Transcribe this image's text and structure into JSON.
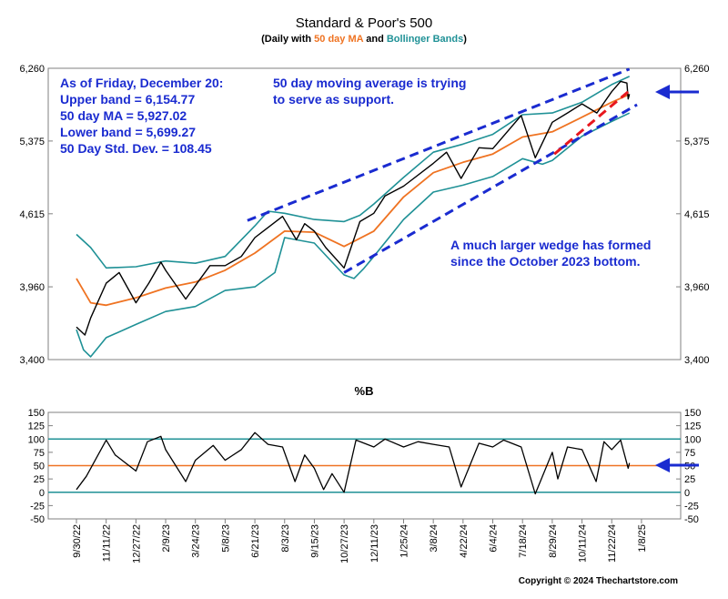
{
  "chart_data": [
    {
      "type": "line",
      "title": "Standard & Poor's 500",
      "subtitle": {
        "prefix": "(Daily with ",
        "ma": "50 day MA",
        "and": " and ",
        "bands": "Bollinger Bands",
        "suffix": ")"
      },
      "ylim": [
        3400,
        6260
      ],
      "y_ticks": [
        "3,400",
        "3,960",
        "4,615",
        "5,375",
        "6,260"
      ],
      "x_ticks": [
        "9/30/22",
        "11/11/22",
        "12/27/22",
        "2/9/23",
        "3/24/23",
        "5/8/23",
        "6/21/23",
        "8/3/23",
        "9/15/23",
        "10/27/23",
        "12/11/23",
        "1/25/24",
        "3/8/24",
        "4/22/24",
        "6/4/24",
        "7/18/24",
        "8/29/24",
        "10/11/24",
        "11/22/24",
        "1/8/25"
      ],
      "colors": {
        "price": "#000000",
        "ma": "#ef7322",
        "bands": "#1f9196",
        "annotation": "#1a2bd0",
        "support": "#e8171e"
      },
      "series": [
        {
          "name": "50 day MA",
          "points": [
            [
              "9/30/22",
              4030
            ],
            [
              "10/20/22",
              3830
            ],
            [
              "11/11/22",
              3810
            ],
            [
              "12/27/22",
              3870
            ],
            [
              "2/9/23",
              3950
            ],
            [
              "3/24/23",
              4000
            ],
            [
              "5/8/23",
              4100
            ],
            [
              "6/21/23",
              4250
            ],
            [
              "8/3/23",
              4450
            ],
            [
              "9/15/23",
              4440
            ],
            [
              "10/27/23",
              4310
            ],
            [
              "12/11/23",
              4450
            ],
            [
              "1/25/24",
              4780
            ],
            [
              "3/8/24",
              5030
            ],
            [
              "4/22/24",
              5140
            ],
            [
              "6/4/24",
              5230
            ],
            [
              "7/18/24",
              5420
            ],
            [
              "8/29/24",
              5480
            ],
            [
              "10/11/24",
              5650
            ],
            [
              "11/22/24",
              5830
            ],
            [
              "12/20/24",
              5927
            ]
          ]
        },
        {
          "name": "Upper band",
          "points": [
            [
              "9/30/22",
              4420
            ],
            [
              "10/20/22",
              4300
            ],
            [
              "11/11/22",
              4120
            ],
            [
              "12/27/22",
              4130
            ],
            [
              "2/9/23",
              4180
            ],
            [
              "3/24/23",
              4160
            ],
            [
              "5/8/23",
              4220
            ],
            [
              "6/21/23",
              4500
            ],
            [
              "7/10/23",
              4640
            ],
            [
              "8/3/23",
              4620
            ],
            [
              "9/15/23",
              4560
            ],
            [
              "10/27/23",
              4540
            ],
            [
              "11/20/23",
              4600
            ],
            [
              "12/11/23",
              4710
            ],
            [
              "1/25/24",
              4980
            ],
            [
              "3/8/24",
              5250
            ],
            [
              "4/22/24",
              5340
            ],
            [
              "6/4/24",
              5450
            ],
            [
              "7/18/24",
              5680
            ],
            [
              "8/29/24",
              5700
            ],
            [
              "10/11/24",
              5830
            ],
            [
              "11/22/24",
              6050
            ],
            [
              "12/20/24",
              6155
            ]
          ]
        },
        {
          "name": "Lower band",
          "points": [
            [
              "9/30/22",
              3620
            ],
            [
              "10/10/22",
              3470
            ],
            [
              "10/20/22",
              3420
            ],
            [
              "11/11/22",
              3560
            ],
            [
              "12/27/22",
              3660
            ],
            [
              "2/9/23",
              3760
            ],
            [
              "3/24/23",
              3800
            ],
            [
              "5/8/23",
              3930
            ],
            [
              "6/21/23",
              3960
            ],
            [
              "7/20/23",
              4080
            ],
            [
              "8/3/23",
              4390
            ],
            [
              "9/15/23",
              4340
            ],
            [
              "10/27/23",
              4060
            ],
            [
              "11/11/23",
              4030
            ],
            [
              "11/25/23",
              4110
            ],
            [
              "12/11/23",
              4220
            ],
            [
              "1/25/24",
              4560
            ],
            [
              "3/8/24",
              4830
            ],
            [
              "4/22/24",
              4900
            ],
            [
              "6/4/24",
              4990
            ],
            [
              "7/18/24",
              5180
            ],
            [
              "8/15/24",
              5120
            ],
            [
              "8/29/24",
              5160
            ],
            [
              "10/11/24",
              5430
            ],
            [
              "11/22/24",
              5600
            ],
            [
              "12/20/24",
              5699
            ]
          ]
        },
        {
          "name": "S&P 500",
          "points": [
            [
              "9/30/22",
              3640
            ],
            [
              "10/12/22",
              3580
            ],
            [
              "10/20/22",
              3710
            ],
            [
              "11/11/22",
              3990
            ],
            [
              "12/1/22",
              4080
            ],
            [
              "12/27/22",
              3830
            ],
            [
              "1/15/23",
              3990
            ],
            [
              "2/2/23",
              4170
            ],
            [
              "2/9/23",
              4100
            ],
            [
              "3/10/23",
              3860
            ],
            [
              "3/24/23",
              3970
            ],
            [
              "4/15/23",
              4140
            ],
            [
              "5/8/23",
              4140
            ],
            [
              "6/1/23",
              4220
            ],
            [
              "6/21/23",
              4390
            ],
            [
              "7/31/23",
              4590
            ],
            [
              "8/20/23",
              4370
            ],
            [
              "9/1/23",
              4520
            ],
            [
              "9/15/23",
              4450
            ],
            [
              "10/1/23",
              4300
            ],
            [
              "10/27/23",
              4120
            ],
            [
              "11/20/23",
              4540
            ],
            [
              "12/11/23",
              4620
            ],
            [
              "12/28/23",
              4790
            ],
            [
              "1/25/24",
              4890
            ],
            [
              "3/8/24",
              5130
            ],
            [
              "3/28/24",
              5250
            ],
            [
              "4/19/24",
              4970
            ],
            [
              "5/15/24",
              5300
            ],
            [
              "6/4/24",
              5290
            ],
            [
              "7/16/24",
              5670
            ],
            [
              "8/5/24",
              5190
            ],
            [
              "8/29/24",
              5590
            ],
            [
              "9/20/24",
              5700
            ],
            [
              "10/11/24",
              5810
            ],
            [
              "11/1/24",
              5700
            ],
            [
              "11/22/24",
              5960
            ],
            [
              "12/6/24",
              6090
            ],
            [
              "12/16/24",
              6070
            ],
            [
              "12/18/24",
              5870
            ],
            [
              "12/20/24",
              5930
            ]
          ]
        }
      ],
      "annotations": {
        "stats": [
          "As of Friday, December 20:",
          "Upper band = 6,154.77",
          "50 day MA = 5,927.02",
          "Lower band = 5,699.27",
          "50 Day Std. Dev. = 108.45"
        ],
        "ma_note": [
          "50 day moving average is trying",
          "to serve as support."
        ],
        "wedge_note": [
          "A much larger wedge has formed",
          "since the October 2023 bottom."
        ]
      },
      "trendlines": [
        {
          "kind": "upper-wedge",
          "from": [
            "6/10/23",
            4550
          ],
          "to": [
            "12/20/24",
            6250
          ]
        },
        {
          "kind": "lower-wedge",
          "from": [
            "10/27/23",
            4080
          ],
          "to": [
            "1/1/25",
            5800
          ]
        },
        {
          "kind": "support",
          "from": [
            "9/1/24",
            5230
          ],
          "to": [
            "12/24/24",
            6000
          ]
        }
      ]
    },
    {
      "type": "line",
      "title": "%B",
      "ylim": [
        -50,
        150
      ],
      "y_ticks": [
        "-50",
        "-25",
        "0",
        "25",
        "50",
        "75",
        "100",
        "125",
        "150"
      ],
      "reference_lines": [
        100,
        50,
        0
      ],
      "series": [
        {
          "name": "%B",
          "points": [
            [
              "9/30/22",
              5
            ],
            [
              "10/14/22",
              30
            ],
            [
              "11/11/22",
              98
            ],
            [
              "11/25/22",
              70
            ],
            [
              "12/27/22",
              40
            ],
            [
              "1/13/23",
              95
            ],
            [
              "2/2/23",
              105
            ],
            [
              "2/9/23",
              80
            ],
            [
              "3/10/23",
              20
            ],
            [
              "3/24/23",
              60
            ],
            [
              "4/20/23",
              88
            ],
            [
              "5/8/23",
              60
            ],
            [
              "6/1/23",
              80
            ],
            [
              "6/21/23",
              112
            ],
            [
              "7/10/23",
              90
            ],
            [
              "7/31/23",
              85
            ],
            [
              "8/18/23",
              20
            ],
            [
              "9/1/23",
              70
            ],
            [
              "9/15/23",
              45
            ],
            [
              "9/28/23",
              5
            ],
            [
              "10/10/23",
              35
            ],
            [
              "10/27/23",
              0
            ],
            [
              "11/14/23",
              98
            ],
            [
              "12/11/23",
              85
            ],
            [
              "12/28/23",
              100
            ],
            [
              "1/25/24",
              85
            ],
            [
              "2/15/24",
              95
            ],
            [
              "3/8/24",
              90
            ],
            [
              "4/1/24",
              85
            ],
            [
              "4/19/24",
              10
            ],
            [
              "5/15/24",
              92
            ],
            [
              "6/4/24",
              85
            ],
            [
              "6/20/24",
              98
            ],
            [
              "7/16/24",
              85
            ],
            [
              "8/5/24",
              -3
            ],
            [
              "8/29/24",
              75
            ],
            [
              "9/6/24",
              25
            ],
            [
              "9/20/24",
              85
            ],
            [
              "10/11/24",
              80
            ],
            [
              "10/31/24",
              20
            ],
            [
              "11/11/24",
              95
            ],
            [
              "11/22/24",
              80
            ],
            [
              "12/6/24",
              98
            ],
            [
              "12/18/24",
              45
            ],
            [
              "12/20/24",
              55
            ]
          ]
        }
      ]
    }
  ],
  "copyright": "Copyright © 2024 Thechartstore.com"
}
